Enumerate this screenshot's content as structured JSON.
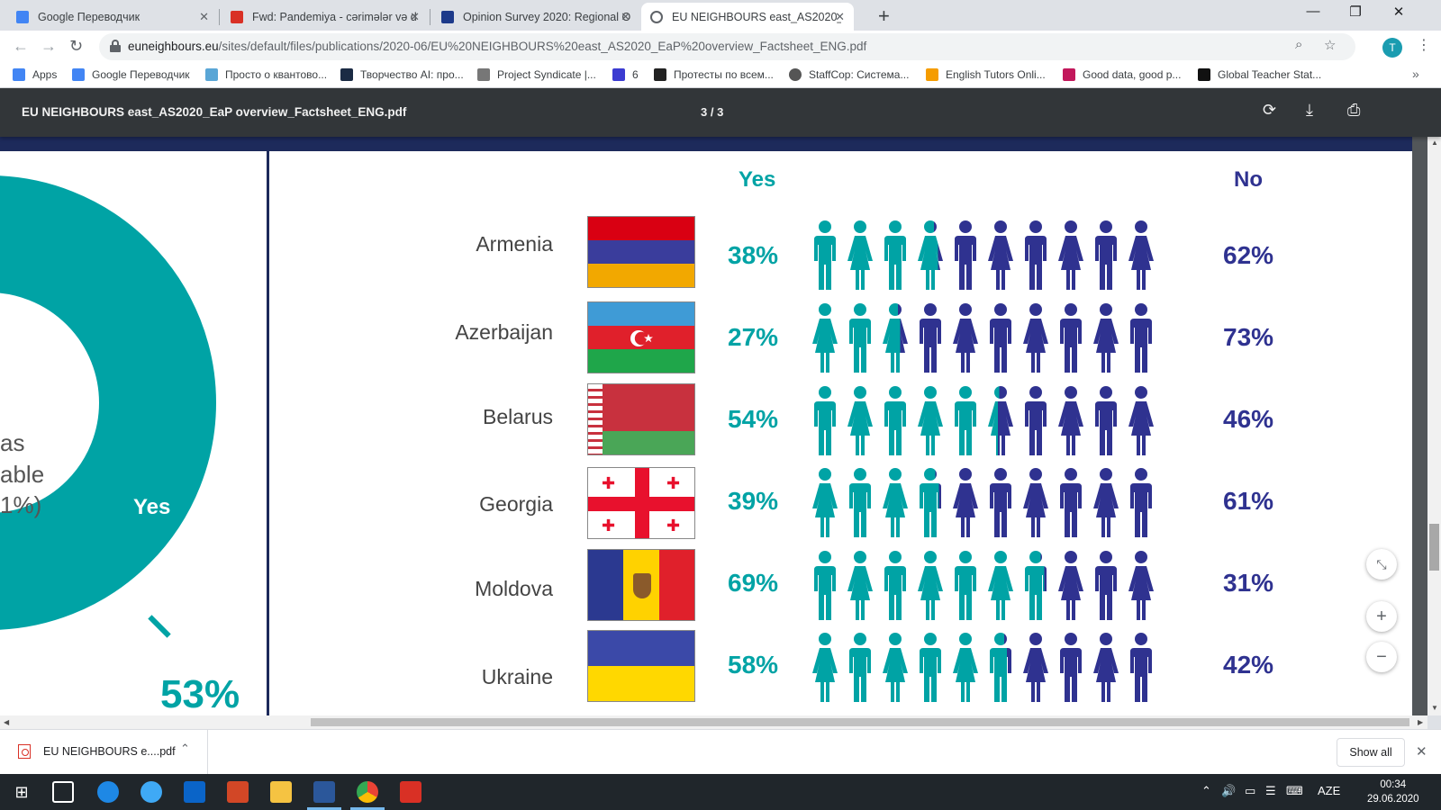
{
  "browser": {
    "tabs": [
      {
        "title": "Google Переводчик",
        "active": false,
        "favicon_color": "#4285f4"
      },
      {
        "title": "Fwd: Pandemiya - cərimələr və d",
        "active": false,
        "favicon_color": "#d93025"
      },
      {
        "title": "Opinion Survey 2020: Regional O",
        "active": false,
        "favicon_color": "#1d3a8a"
      },
      {
        "title": "EU NEIGHBOURS east_AS2020_E",
        "active": true,
        "favicon_color": "#5f6368"
      }
    ],
    "new_tab": "+",
    "window_controls": {
      "minimize": "—",
      "maximize": "❐",
      "close": "✕"
    },
    "url_host": "euneighbours.eu",
    "url_path": "/sites/default/files/publications/2020-06/EU%20NEIGHBOURS%20east_AS2020_EaP%20overview_Factsheet_ENG.pdf",
    "profile_initial": "T",
    "bookmarks": [
      {
        "label": "Apps",
        "color": "#4285f4"
      },
      {
        "label": "Google Переводчик",
        "color": "#4285f4"
      },
      {
        "label": "Просто о квантово...",
        "color": "#5aa6d6"
      },
      {
        "label": "Творчество AI: про...",
        "color": "#1b2b44"
      },
      {
        "label": "Project Syndicate |...",
        "color": "#777777"
      },
      {
        "label": "6",
        "color": "#3b3bd1"
      },
      {
        "label": "Протесты по всем...",
        "color": "#222222"
      },
      {
        "label": "StaffCop: Система...",
        "color": "#555555"
      },
      {
        "label": "English Tutors Onli...",
        "color": "#f59c00"
      },
      {
        "label": "Good data, good p...",
        "color": "#c2185b"
      },
      {
        "label": "Global Teacher Stat...",
        "color": "#111111"
      }
    ]
  },
  "pdf": {
    "title": "EU NEIGHBOURS east_AS2020_EaP overview_Factsheet_ENG.pdf",
    "page_indicator": "3 / 3",
    "donut_text_lines": [
      "as",
      "able",
      "1%)"
    ],
    "donut_yes": "Yes",
    "donut_pct": "53%",
    "header_yes": "Yes",
    "header_no": "No",
    "colors": {
      "yes": "#00a3a5",
      "no": "#2f3290"
    },
    "rows": [
      {
        "country": "Armenia",
        "yes": "38%",
        "no": "62%",
        "yes_value": 38
      },
      {
        "country": "Azerbaijan",
        "yes": "27%",
        "no": "73%",
        "yes_value": 27
      },
      {
        "country": "Belarus",
        "yes": "54%",
        "no": "46%",
        "yes_value": 54
      },
      {
        "country": "Georgia",
        "yes": "39%",
        "no": "61%",
        "yes_value": 39
      },
      {
        "country": "Moldova",
        "yes": "69%",
        "no": "31%",
        "yes_value": 69
      },
      {
        "country": "Ukraine",
        "yes": "58%",
        "no": "42%",
        "yes_value": 58
      }
    ]
  },
  "downloads": {
    "file": "EU NEIGHBOURS e....pdf",
    "show_all": "Show all"
  },
  "taskbar": {
    "language": "AZE",
    "time": "00:34",
    "date": "29.06.2020"
  }
}
